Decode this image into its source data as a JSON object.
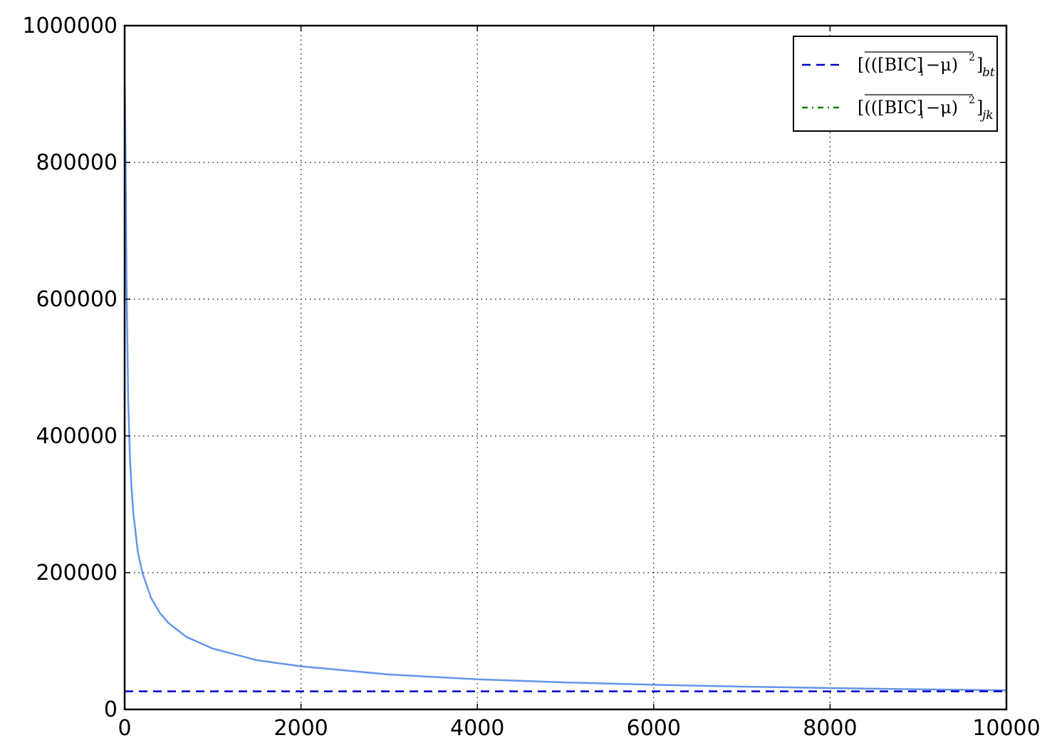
{
  "chart_data": {
    "type": "line",
    "title": "",
    "xlabel": "",
    "ylabel": "",
    "xlim": [
      0,
      10000
    ],
    "ylim": [
      0,
      1000000
    ],
    "xticks": [
      0,
      2000,
      4000,
      6000,
      8000,
      10000
    ],
    "yticks": [
      0,
      200000,
      400000,
      600000,
      800000,
      1000000
    ],
    "xtick_labels": [
      "0",
      "2000",
      "4000",
      "6000",
      "8000",
      "10000"
    ],
    "ytick_labels": [
      "0",
      "200000",
      "400000",
      "600000",
      "800000",
      "1000000"
    ],
    "grid": true,
    "legend_position": "top-right",
    "series": [
      {
        "style": "solid",
        "color": "#6495ed",
        "x": [
          1,
          10,
          20,
          40,
          60,
          80,
          100,
          150,
          200,
          300,
          400,
          500,
          700,
          1000,
          1500,
          2000,
          3000,
          4000,
          5000,
          6000,
          7000,
          8000,
          9000,
          10000
        ],
        "y": [
          915000,
          820000,
          640000,
          450000,
          370000,
          320000,
          285000,
          230000,
          200000,
          163000,
          141000,
          126000,
          106000,
          89000,
          72000,
          63000,
          51000,
          44000,
          39500,
          36000,
          33300,
          31200,
          29400,
          27900
        ]
      },
      {
        "name": "[(([BIC]i−μ)²)]bt",
        "style": "dashed",
        "color": "#0000cc",
        "x": [
          0,
          10000
        ],
        "y": [
          26500,
          26500
        ]
      },
      {
        "name": "[(([BIC]i−μ)²)]jk",
        "style": "dashdot",
        "color": "#008000",
        "x": [],
        "y": []
      }
    ],
    "legend": [
      {
        "main": "[(([BIC]",
        "sub_i": "i",
        "tail": "−μ)",
        "sup": "2",
        "close": "]",
        "sub": "bt"
      },
      {
        "main": "[(([BIC]",
        "sub_i": "i",
        "tail": "−μ)",
        "sup": "2",
        "close": "]",
        "sub": "jk"
      }
    ]
  }
}
